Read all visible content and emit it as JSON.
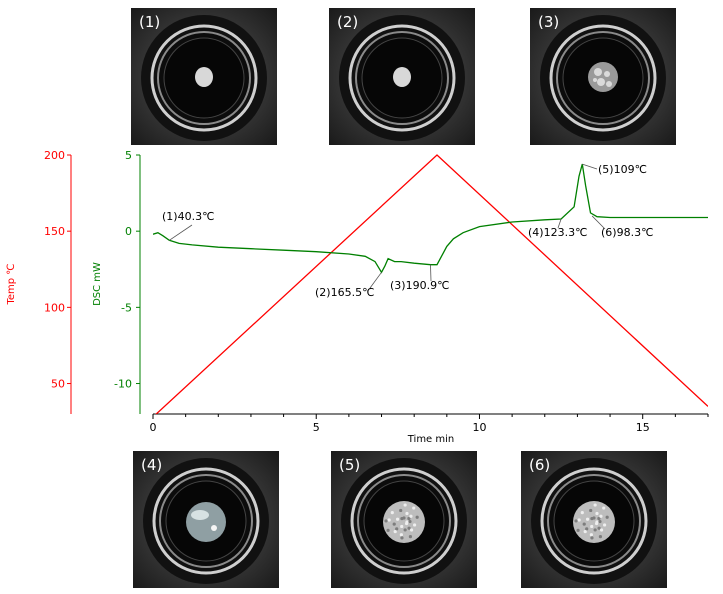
{
  "photos": [
    {
      "label": "(1)",
      "state": "powder-small"
    },
    {
      "label": "(2)",
      "state": "powder-small"
    },
    {
      "label": "(3)",
      "state": "melting-bubbly"
    },
    {
      "label": "(4)",
      "state": "liquid-clear"
    },
    {
      "label": "(5)",
      "state": "crystallized"
    },
    {
      "label": "(6)",
      "state": "crystallized"
    }
  ],
  "chart_data": {
    "type": "line",
    "xlabel": "Time min",
    "xlim": [
      0,
      17
    ],
    "xticks": [
      0,
      5,
      10,
      15
    ],
    "axes": {
      "temp": {
        "label": "Temp ℃",
        "ticks": [
          50,
          100,
          150,
          200
        ],
        "range": [
          30,
          200
        ],
        "color": "#ff0000"
      },
      "dsc": {
        "label": "DSC mW",
        "ticks": [
          -10,
          -5,
          0,
          5
        ],
        "range": [
          -12,
          5
        ],
        "color": "#008000"
      }
    },
    "series": [
      {
        "name": "Temp ℃",
        "axis": "temp",
        "color": "#ff0000",
        "x": [
          0,
          8.7,
          17
        ],
        "y": [
          28,
          200,
          35
        ]
      },
      {
        "name": "DSC mW",
        "axis": "dsc",
        "color": "#008000",
        "x": [
          0,
          0.15,
          0.3,
          0.5,
          0.8,
          1.2,
          2,
          3,
          4,
          5,
          6,
          6.5,
          6.8,
          7.0,
          7.1,
          7.2,
          7.4,
          7.6,
          8,
          8.5,
          8.7,
          8.85,
          9.0,
          9.2,
          9.5,
          10,
          11,
          12,
          12.5,
          12.9,
          13.05,
          13.15,
          13.25,
          13.4,
          13.6,
          14,
          15,
          16,
          17
        ],
        "y": [
          -0.2,
          -0.1,
          -0.3,
          -0.6,
          -0.8,
          -0.9,
          -1.05,
          -1.15,
          -1.25,
          -1.35,
          -1.5,
          -1.65,
          -2.0,
          -2.7,
          -2.3,
          -1.8,
          -2.0,
          -2.0,
          -2.1,
          -2.2,
          -2.2,
          -1.6,
          -1.0,
          -0.5,
          -0.1,
          0.3,
          0.6,
          0.75,
          0.8,
          1.6,
          3.6,
          4.4,
          3.0,
          1.2,
          0.95,
          0.9,
          0.9,
          0.9,
          0.9
        ]
      }
    ],
    "annotations": [
      {
        "text": "(1)40.3℃",
        "x": 0.5,
        "y": -0.6
      },
      {
        "text": "(2)165.5℃",
        "x": 7.0,
        "y": -2.7
      },
      {
        "text": "(3)190.9℃",
        "x": 8.5,
        "y": -2.2
      },
      {
        "text": "(4)123.3℃",
        "x": 12.5,
        "y": 0.8
      },
      {
        "text": "(5)109℃",
        "x": 13.15,
        "y": 4.4
      },
      {
        "text": "(6)98.3℃",
        "x": 13.45,
        "y": 1.0
      }
    ]
  }
}
